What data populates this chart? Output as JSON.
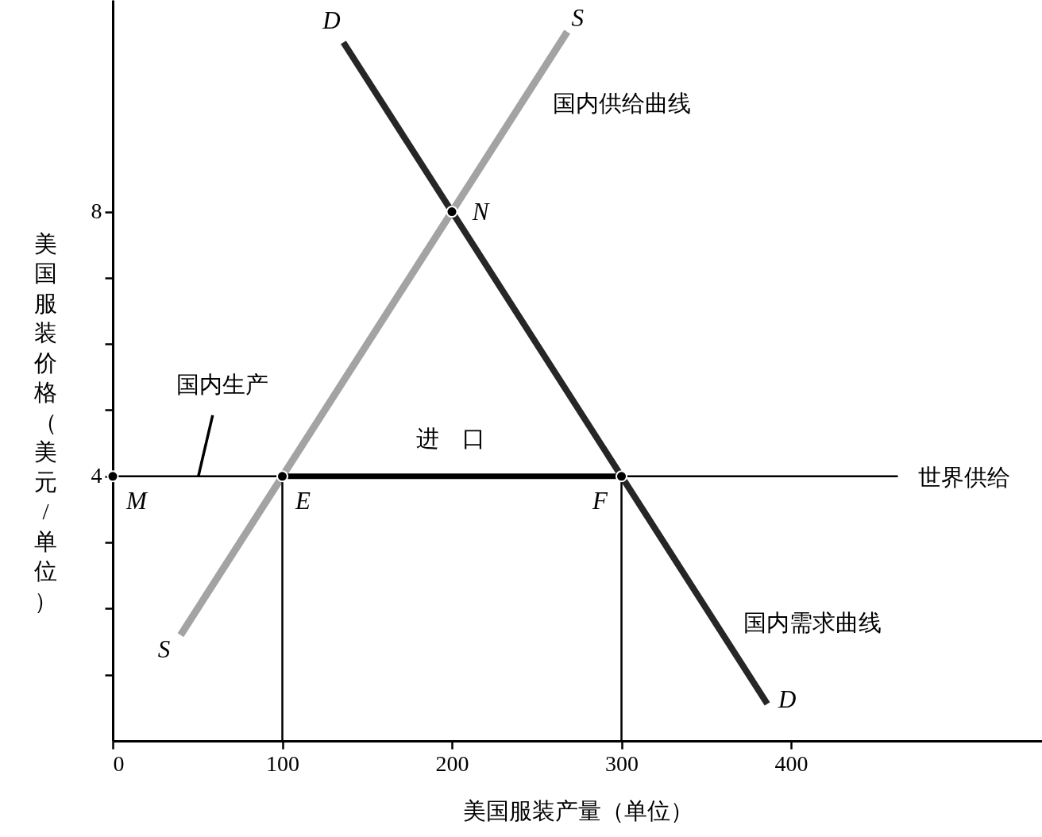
{
  "chart_data": {
    "type": "line",
    "xlabel": "美国服装产量（单位）",
    "ylabel": "美国服装价格（美元/单位）",
    "xlim": [
      0,
      548
    ],
    "ylim": [
      0,
      11.2
    ],
    "xticks": [
      0,
      100,
      200,
      300,
      400
    ],
    "yticks": [
      {
        "value": 1,
        "label": null
      },
      {
        "value": 2,
        "label": null
      },
      {
        "value": 3,
        "label": null
      },
      4,
      {
        "value": 5,
        "label": null
      },
      {
        "value": 6,
        "label": null
      },
      {
        "value": 7,
        "label": null
      },
      8
    ],
    "grid": false,
    "series": [
      {
        "color": "#a3a3a3",
        "x": [
          40,
          268
        ],
        "values": [
          1.6,
          10.72
        ]
      },
      {
        "color": "#262626",
        "x": [
          136,
          386
        ],
        "values": [
          10.56,
          0.56
        ]
      },
      {
        "color": "#000000",
        "x": [
          0,
          463
        ],
        "values": [
          4,
          4
        ]
      },
      {
        "color": "#000000",
        "x": [
          100,
          300
        ],
        "values": [
          4,
          4
        ]
      },
      {
        "color": "#000000",
        "x": [
          100,
          100
        ],
        "values": [
          0,
          4
        ]
      },
      {
        "color": "#000000",
        "x": [
          300,
          300
        ],
        "values": [
          0,
          4
        ]
      },
      {
        "type": "scatter",
        "color": "#000000",
        "marker": "circle",
        "x": [
          0,
          100,
          300,
          200
        ],
        "values": [
          4,
          4,
          4,
          8
        ]
      }
    ],
    "annotations": [
      {
        "text": "D",
        "x": 136,
        "y": 10.56
      },
      {
        "text": "S",
        "x": 268,
        "y": 10.72
      },
      {
        "text": "国内供给曲线",
        "x": 241,
        "y": 9.64
      },
      {
        "text": "N",
        "x": 200,
        "y": 8
      },
      {
        "text": "国内生产",
        "x": 50,
        "y": 4
      },
      {
        "text": "进　口",
        "x": 200,
        "y": 4
      },
      {
        "text": "世界供给",
        "x": 463,
        "y": 4
      },
      {
        "text": "M",
        "x": 0,
        "y": 4
      },
      {
        "text": "E",
        "x": 100,
        "y": 4
      },
      {
        "text": "F",
        "x": 300,
        "y": 4
      },
      {
        "text": "S",
        "x": 40,
        "y": 1.6
      },
      {
        "text": "国内需求曲线",
        "x": 356,
        "y": 1.76
      },
      {
        "text": "D",
        "x": 386,
        "y": 0.56
      }
    ]
  }
}
